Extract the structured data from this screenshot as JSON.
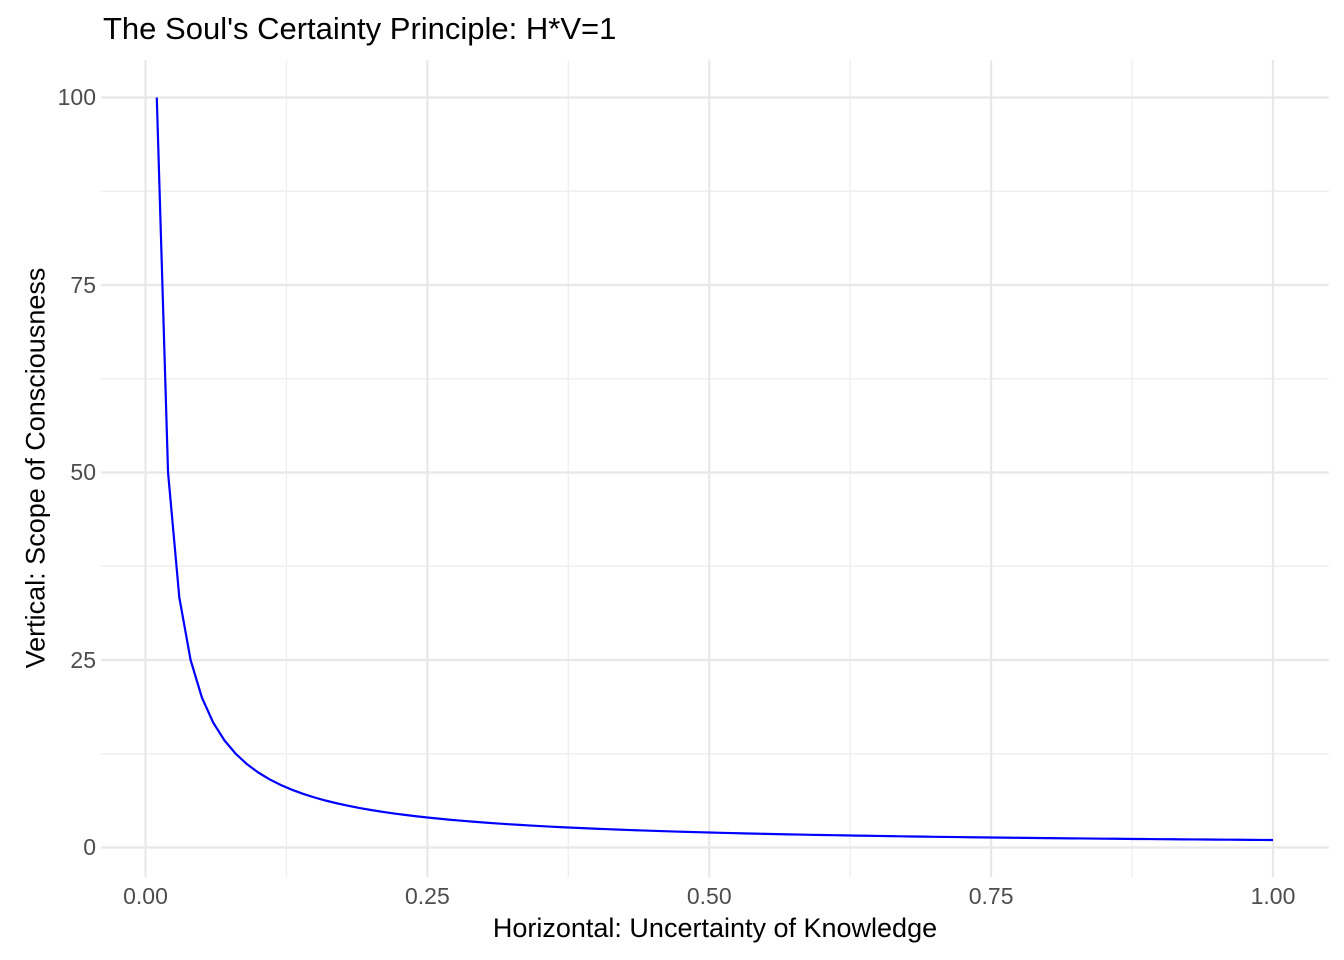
{
  "chart_data": {
    "type": "line",
    "title": "The Soul's Certainty Principle: H*V=1",
    "xlabel": "Horizontal: Uncertainty of Knowledge",
    "ylabel": "Vertical: Scope of Consciousness",
    "x_ticks": {
      "values": [
        0,
        0.25,
        0.5,
        0.75,
        1
      ],
      "labels": [
        "0.00",
        "0.25",
        "0.50",
        "0.75",
        "1.00"
      ]
    },
    "y_ticks": {
      "values": [
        0,
        25,
        50,
        75,
        100
      ],
      "labels": [
        "0",
        "25",
        "50",
        "75",
        "100"
      ]
    },
    "xlim": [
      -0.04,
      1.05
    ],
    "ylim": [
      -3.95,
      103.95
    ],
    "grid": {
      "major": true,
      "minor": true,
      "major_color": "#E8E8E8",
      "minor_color": "#EFEFEF"
    },
    "background": "#FFFFFF",
    "text_colors": {
      "title": "#000000",
      "axis_title": "#000000",
      "tick_label": "#4D4D4D"
    },
    "legend": false,
    "series": [
      {
        "name": "H*V=1",
        "color": "#0000FF",
        "relation": "y = 1/x",
        "x_start": 0.01,
        "x_step": 0.01,
        "n_points": 100,
        "y_values": [
          100,
          50,
          33.3333,
          25,
          20,
          16.6667,
          14.2857,
          12.5,
          11.1111,
          10,
          9.0909,
          8.3333,
          7.6923,
          7.1429,
          6.6667,
          6.25,
          5.8824,
          5.5556,
          5.2632,
          5,
          4.7619,
          4.5455,
          4.3478,
          4.1667,
          4,
          3.8462,
          3.7037,
          3.5714,
          3.4483,
          3.3333,
          3.2258,
          3.125,
          3.0303,
          2.9412,
          2.8571,
          2.7778,
          2.7027,
          2.6316,
          2.5641,
          2.5,
          2.439,
          2.381,
          2.3256,
          2.2727,
          2.2222,
          2.1739,
          2.1277,
          2.0833,
          2.0408,
          2,
          1.9608,
          1.9231,
          1.8868,
          1.8519,
          1.8182,
          1.7857,
          1.7544,
          1.7241,
          1.6949,
          1.6667,
          1.6393,
          1.6129,
          1.5873,
          1.5625,
          1.5385,
          1.5152,
          1.4925,
          1.4706,
          1.4493,
          1.4286,
          1.4085,
          1.3889,
          1.3699,
          1.3514,
          1.3333,
          1.3158,
          1.2987,
          1.2821,
          1.2658,
          1.25,
          1.2346,
          1.2195,
          1.2048,
          1.1905,
          1.1765,
          1.1628,
          1.1494,
          1.1364,
          1.1236,
          1.1111,
          1.0989,
          1.087,
          1.0753,
          1.0638,
          1.0526,
          1.0417,
          1.0309,
          1.0204,
          1.0101,
          1
        ]
      }
    ]
  }
}
